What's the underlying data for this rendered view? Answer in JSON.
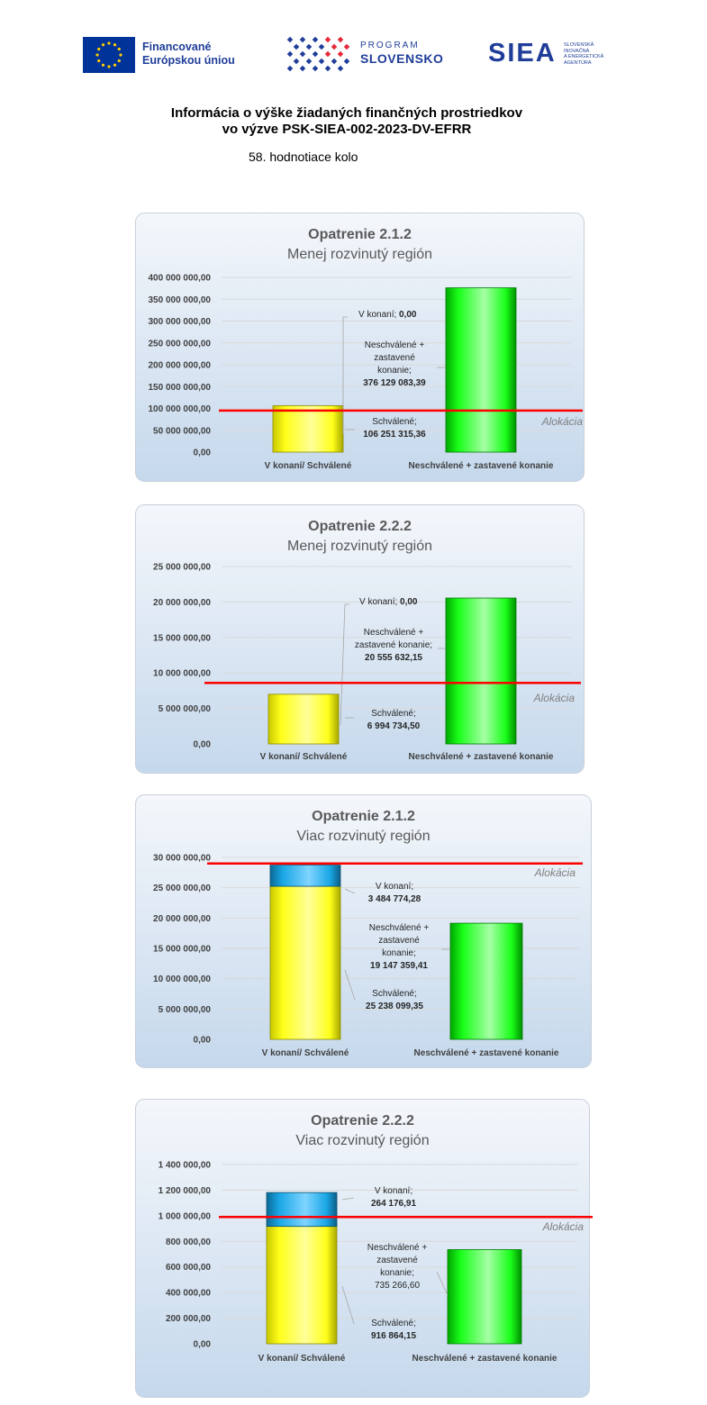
{
  "header": {
    "eu_logo_text": [
      "Financované",
      "Európskou úniou"
    ],
    "ps_logo_text": [
      "PROGRAM",
      "SLOVENSKO"
    ],
    "siea_logo_text": "SIEA",
    "siea_logo_subtext": [
      "SLOVENSKÁ",
      "INOVAČNÁ",
      "A ENERGETICKÁ",
      "AGENTÚRA"
    ],
    "title_line1": "Informácia o výške žiadaných finančných prostriedkov",
    "title_line2": "vo výzve PSK-SIEA-002-2023-DV-EFRR",
    "round": "58. hodnotiace kolo"
  },
  "colors": {
    "approved": "#ffff1a",
    "in_progress": "#1aa7e6",
    "rejected": "#1aff1a",
    "allocation": "#ff0000",
    "panel_top": "#f4f7fb",
    "panel_bottom": "#c5d8ec"
  },
  "chart_data": [
    {
      "type": "bar",
      "title": "Opatrenie 2.1.2",
      "subtitle": "Menej rozvinutý región",
      "categories": [
        "V konaní/ Schválené",
        "Neschválené + zastavené konanie"
      ],
      "series": [
        {
          "name": "Schválené",
          "values": [
            106251315.36,
            0
          ]
        },
        {
          "name": "V konaní",
          "values": [
            0.0,
            0
          ]
        },
        {
          "name": "Neschválené + zastavené konanie",
          "values": [
            0,
            376129083.39
          ]
        }
      ],
      "yticks": [
        "0,00",
        "50 000 000,00",
        "100 000 000,00",
        "150 000 000,00",
        "200 000 000,00",
        "250 000 000,00",
        "300 000 000,00",
        "350 000 000,00",
        "400 000 000,00"
      ],
      "ylim": [
        0,
        400000000
      ],
      "allocation": 95000000,
      "allocation_label": "Alokácia",
      "labels": [
        {
          "lines": [
            "V konaní; 0,00"
          ],
          "bold": [],
          "mixed": true
        },
        {
          "lines": [
            "Neschválené +",
            "zastavené",
            "konanie;",
            "376 129 083,39"
          ],
          "bold": [
            3
          ]
        },
        {
          "lines": [
            "Schválené;",
            "106 251 315,36"
          ],
          "bold": [
            1
          ]
        }
      ]
    },
    {
      "type": "bar",
      "title": "Opatrenie 2.2.2",
      "subtitle": "Menej rozvinutý región",
      "categories": [
        "V konaní/ Schválené",
        "Neschválené + zastavené konanie"
      ],
      "series": [
        {
          "name": "Schválené",
          "values": [
            6994734.5,
            0
          ]
        },
        {
          "name": "V konaní",
          "values": [
            0.0,
            0
          ]
        },
        {
          "name": "Neschválené + zastavené konanie",
          "values": [
            0,
            20555632.15
          ]
        }
      ],
      "yticks": [
        "0,00",
        "5 000 000,00",
        "10 000 000,00",
        "15 000 000,00",
        "20 000 000,00",
        "25 000 000,00"
      ],
      "ylim": [
        0,
        25000000
      ],
      "allocation": 8600000,
      "allocation_label": "Alokácia",
      "labels": [
        {
          "lines": [
            "V konaní; 0,00"
          ],
          "bold": [],
          "mixed": true
        },
        {
          "lines": [
            "Neschválené +",
            "zastavené konanie;",
            "20 555 632,15"
          ],
          "bold": [
            2
          ]
        },
        {
          "lines": [
            "Schválené;",
            "6 994 734,50"
          ],
          "bold": [
            1
          ]
        }
      ]
    },
    {
      "type": "bar",
      "title": "Opatrenie 2.1.2",
      "subtitle": "Viac rozvinutý región",
      "categories": [
        "V konaní/ Schválené",
        "Neschválené + zastavené konanie"
      ],
      "series": [
        {
          "name": "Schválené",
          "values": [
            25238099.35,
            0
          ]
        },
        {
          "name": "V konaní",
          "values": [
            3484774.28,
            0
          ]
        },
        {
          "name": "Neschválené + zastavené konanie",
          "values": [
            0,
            19147359.41
          ]
        }
      ],
      "yticks": [
        "0,00",
        "5 000 000,00",
        "10 000 000,00",
        "15 000 000,00",
        "20 000 000,00",
        "25 000 000,00",
        "30 000 000,00"
      ],
      "ylim": [
        0,
        30000000
      ],
      "allocation": 29000000,
      "allocation_label": "Alokácia",
      "labels": [
        {
          "lines": [
            "V konaní;",
            "3 484 774,28"
          ],
          "bold": [
            1
          ]
        },
        {
          "lines": [
            "Neschválené +",
            "zastavené",
            "konanie;",
            "19 147 359,41"
          ],
          "bold": [
            3
          ]
        },
        {
          "lines": [
            "Schválené;",
            "25 238 099,35"
          ],
          "bold": [
            1
          ]
        }
      ]
    },
    {
      "type": "bar",
      "title": "Opatrenie 2.2.2",
      "subtitle": "Viac rozvinutý región",
      "categories": [
        "V konaní/ Schválené",
        "Neschválené + zastavené konanie"
      ],
      "series": [
        {
          "name": "Schválené",
          "values": [
            916864.15,
            0
          ]
        },
        {
          "name": "V konaní",
          "values": [
            264176.91,
            0
          ]
        },
        {
          "name": "Neschválené + zastavené konanie",
          "values": [
            0,
            735266.6
          ]
        }
      ],
      "yticks": [
        "0,00",
        "200 000,00",
        "400 000,00",
        "600 000,00",
        "800 000,00",
        "1 000 000,00",
        "1 200 000,00",
        "1 400 000,00"
      ],
      "ylim": [
        0,
        1400000
      ],
      "allocation": 990000,
      "allocation_label": "Alokácia",
      "labels": [
        {
          "lines": [
            "V konaní;",
            "264 176,91"
          ],
          "bold": [
            1
          ]
        },
        {
          "lines": [
            "Neschválené +",
            "zastavené",
            "konanie;",
            "735 266,60"
          ],
          "bold": []
        },
        {
          "lines": [
            "Schválené;",
            "916 864,15"
          ],
          "bold": [
            1
          ]
        }
      ]
    }
  ]
}
